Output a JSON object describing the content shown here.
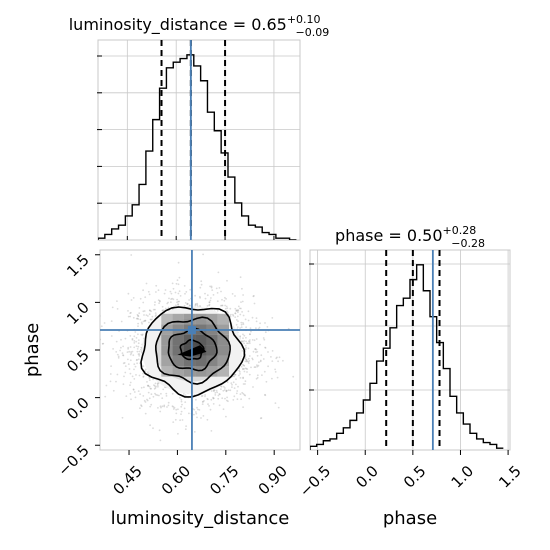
{
  "chart_data": {
    "type": "corner",
    "colors": {
      "truth": "#4a7fb5",
      "hist": "#000000",
      "grid": "#c8c8c8"
    },
    "parameters": [
      "luminosity_distance",
      "phase"
    ],
    "truths": {
      "luminosity_distance": 0.645,
      "phase": 0.71
    },
    "titles": [
      {
        "param": "luminosity_distance",
        "prefix": "luminosity_distance = ",
        "median": "0.65",
        "plus": "+0.10",
        "minus": "−0.09"
      },
      {
        "param": "phase",
        "prefix": "phase = ",
        "median": "0.50",
        "plus": "+0.28",
        "minus": "−0.28"
      }
    ],
    "marginals": [
      {
        "param": "luminosity_distance",
        "xlim": [
          0.36,
          0.98
        ],
        "quantiles": [
          0.555,
          0.645,
          0.75
        ],
        "bin_edges": [
          0.36,
          0.381,
          0.402,
          0.423,
          0.444,
          0.465,
          0.486,
          0.507,
          0.528,
          0.549,
          0.57,
          0.591,
          0.612,
          0.633,
          0.654,
          0.675,
          0.696,
          0.717,
          0.738,
          0.759,
          0.78,
          0.801,
          0.822,
          0.843,
          0.864,
          0.885,
          0.906,
          0.927,
          0.948,
          0.969
        ],
        "counts": [
          0.01,
          0.03,
          0.06,
          0.08,
          0.13,
          0.19,
          0.3,
          0.48,
          0.65,
          0.82,
          0.93,
          0.96,
          0.98,
          1.0,
          0.94,
          0.86,
          0.69,
          0.59,
          0.47,
          0.34,
          0.2,
          0.13,
          0.08,
          0.07,
          0.04,
          0.03,
          0.01,
          0.01,
          0.0
        ]
      },
      {
        "param": "phase",
        "xlim": [
          -0.58,
          1.52
        ],
        "quantiles": [
          0.22,
          0.5,
          0.78
        ],
        "bin_edges": [
          -0.58,
          -0.51,
          -0.44,
          -0.37,
          -0.3,
          -0.23,
          -0.16,
          -0.09,
          -0.02,
          0.05,
          0.12,
          0.19,
          0.26,
          0.33,
          0.4,
          0.47,
          0.54,
          0.61,
          0.68,
          0.75,
          0.82,
          0.89,
          0.96,
          1.03,
          1.1,
          1.17,
          1.24,
          1.31,
          1.38,
          1.45
        ],
        "counts": [
          0.02,
          0.03,
          0.05,
          0.06,
          0.09,
          0.12,
          0.16,
          0.2,
          0.27,
          0.36,
          0.48,
          0.55,
          0.66,
          0.78,
          0.82,
          0.92,
          1.0,
          0.86,
          0.72,
          0.58,
          0.44,
          0.29,
          0.2,
          0.14,
          0.09,
          0.06,
          0.04,
          0.03,
          0.01
        ]
      }
    ],
    "joint": {
      "x": "luminosity_distance",
      "y": "phase",
      "xlim": [
        0.36,
        0.98
      ],
      "ylim": [
        -0.55,
        1.55
      ],
      "center": [
        0.645,
        0.5
      ],
      "sigma": [
        0.095,
        0.28
      ],
      "contours": [
        {
          "level": "inner",
          "rx": 0.035,
          "ry": 0.1
        },
        {
          "level": "1",
          "rx": 0.075,
          "ry": 0.21
        },
        {
          "level": "2",
          "rx": 0.115,
          "ry": 0.33
        },
        {
          "level": "3",
          "rx": 0.155,
          "ry": 0.46
        }
      ]
    },
    "axes": {
      "luminosity_distance": {
        "ticks": [
          0.45,
          0.6,
          0.75,
          0.9
        ],
        "tick_labels": [
          "0.45",
          "0.60",
          "0.75",
          "0.90"
        ],
        "label": "luminosity_distance"
      },
      "phase_x": {
        "ticks": [
          -0.5,
          0.0,
          0.5,
          1.0,
          1.5
        ],
        "tick_labels": [
          "−0.5",
          "0.0",
          "0.5",
          "1.0",
          "1.5"
        ],
        "label": "phase"
      },
      "phase_y": {
        "ticks": [
          -0.5,
          0.0,
          0.5,
          1.0,
          1.5
        ],
        "tick_labels": [
          "−0.5",
          "0.0",
          "0.5",
          "1.0",
          "1.5"
        ],
        "label": "phase"
      }
    },
    "grid": true
  }
}
